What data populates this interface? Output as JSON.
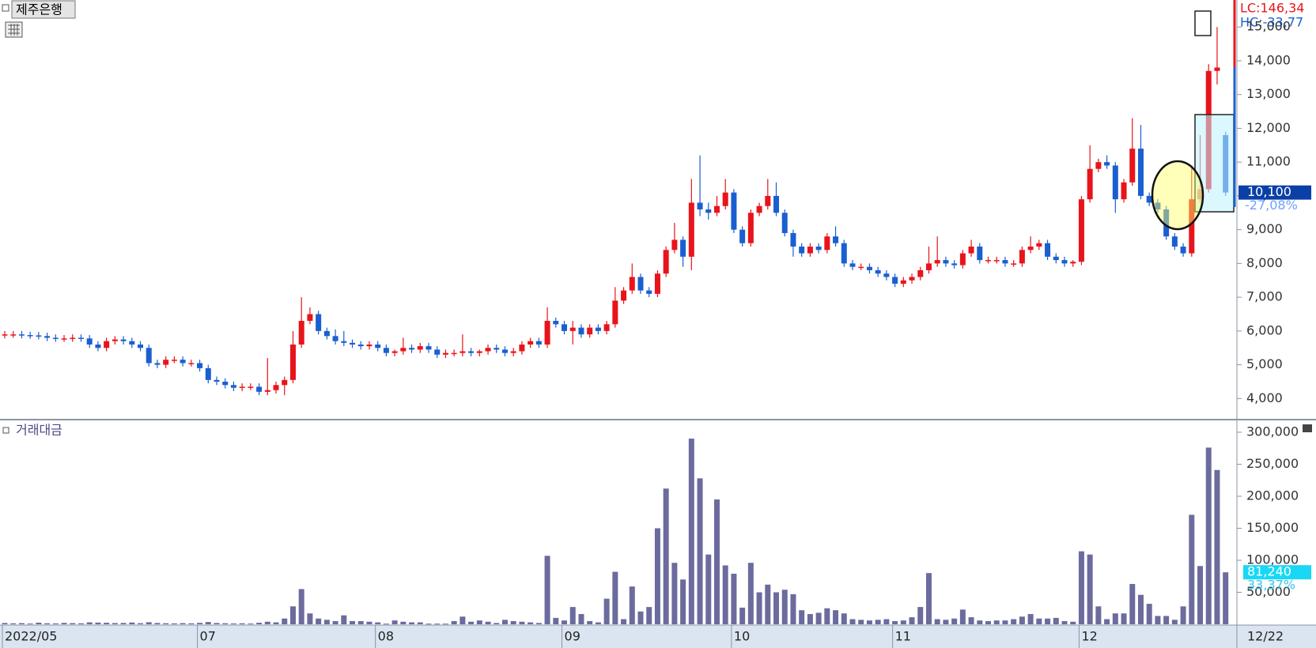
{
  "chart_data": [
    {
      "type": "candlestick",
      "title": "제주은행",
      "up_color": "#e8141b",
      "down_color": "#1a5fd0",
      "open": [
        5880,
        5900,
        5900,
        5880,
        5870,
        5850,
        5800,
        5780,
        5780,
        5800,
        5780,
        5600,
        5500,
        5700,
        5750,
        5700,
        5600,
        5500,
        5050,
        5000,
        5150,
        5150,
        5050,
        5050,
        4900,
        4550,
        4500,
        4400,
        4320,
        4350,
        4350,
        4200,
        4250,
        4400,
        4550,
        5600,
        6300,
        6500,
        6000,
        5850,
        5700,
        5650,
        5600,
        5550,
        5600,
        5500,
        5350,
        5400,
        5500,
        5450,
        5550,
        5450,
        5300,
        5350,
        5350,
        5400,
        5350,
        5400,
        5500,
        5450,
        5350,
        5400,
        5600,
        5700,
        5600,
        6300,
        6200,
        6000,
        6100,
        5900,
        6100,
        6000,
        6200,
        6900,
        7200,
        7600,
        7200,
        7100,
        7700,
        8400,
        8700,
        8200,
        9800,
        9600,
        9500,
        9700,
        10100,
        9000,
        8600,
        9500,
        9700,
        10000,
        9500,
        8900,
        8500,
        8300,
        8500,
        8400,
        8800,
        8600,
        8000,
        7900,
        7900,
        7800,
        7700,
        7600,
        7400,
        7500,
        7600,
        7800,
        8000,
        8100,
        8000,
        7950,
        8300,
        8500,
        8100,
        8100,
        8100,
        8000,
        8000,
        8400,
        8500,
        8600,
        8200,
        8100,
        8000,
        8050,
        9900,
        10800,
        11000,
        10900,
        9900,
        10400,
        11400,
        10000,
        9800,
        9600,
        8800,
        8500,
        8300,
        9900,
        10200,
        13700,
        11800
      ],
      "high": [
        6000,
        6000,
        6000,
        5980,
        5970,
        5950,
        5900,
        5880,
        5900,
        5900,
        5880,
        5700,
        5800,
        5850,
        5850,
        5800,
        5700,
        5600,
        5150,
        5250,
        5250,
        5250,
        5150,
        5150,
        5000,
        4650,
        4600,
        4500,
        4450,
        4450,
        4450,
        5200,
        4500,
        4650,
        6000,
        7000,
        6700,
        6600,
        6100,
        6050,
        6000,
        5750,
        5700,
        5700,
        5700,
        5600,
        5450,
        5800,
        5600,
        5650,
        5650,
        5550,
        5450,
        5450,
        5900,
        5500,
        5450,
        5600,
        5600,
        5550,
        5500,
        5700,
        5800,
        5800,
        6700,
        6400,
        6300,
        6300,
        6200,
        6200,
        6200,
        6300,
        7300,
        7300,
        8000,
        7700,
        7300,
        7800,
        8500,
        9200,
        8800,
        10500,
        11200,
        9800,
        10000,
        10500,
        10200,
        9100,
        9600,
        9800,
        10500,
        10400,
        9600,
        9000,
        8600,
        8600,
        8600,
        8900,
        9100,
        8700,
        8100,
        8000,
        8000,
        7900,
        7800,
        7700,
        7600,
        7700,
        7900,
        8500,
        8800,
        8200,
        8100,
        8400,
        8700,
        8600,
        8200,
        8200,
        8200,
        8100,
        8500,
        8800,
        8700,
        8700,
        8300,
        8200,
        8100,
        10000,
        11500,
        11100,
        11200,
        11000,
        10500,
        12300,
        12100,
        10100,
        9900,
        9700,
        8900,
        8600,
        10900,
        11800,
        13900,
        15000,
        11900
      ],
      "low": [
        5780,
        5800,
        5780,
        5770,
        5750,
        5700,
        5680,
        5680,
        5680,
        5680,
        5500,
        5400,
        5400,
        5600,
        5600,
        5500,
        5400,
        4950,
        4900,
        4900,
        5050,
        4950,
        4950,
        4800,
        4450,
        4400,
        4300,
        4220,
        4220,
        4250,
        4100,
        4100,
        4150,
        4100,
        4450,
        5500,
        6200,
        5900,
        5750,
        5600,
        5550,
        5500,
        5450,
        5450,
        5400,
        5250,
        5250,
        5300,
        5350,
        5350,
        5350,
        5200,
        5200,
        5250,
        5250,
        5250,
        5250,
        5300,
        5350,
        5250,
        5250,
        5300,
        5500,
        5500,
        5500,
        6100,
        5900,
        5600,
        5800,
        5800,
        5900,
        5900,
        6100,
        6800,
        7100,
        7100,
        7000,
        7000,
        7600,
        8300,
        7900,
        7800,
        9400,
        9300,
        9400,
        9600,
        8900,
        8500,
        8500,
        9400,
        9600,
        9400,
        8800,
        8200,
        8200,
        8200,
        8300,
        8300,
        8500,
        7900,
        7800,
        7800,
        7700,
        7600,
        7500,
        7300,
        7300,
        7400,
        7500,
        7700,
        7900,
        7900,
        7850,
        7850,
        8200,
        8000,
        8000,
        8000,
        7900,
        7900,
        7900,
        8300,
        8400,
        8100,
        8000,
        7900,
        7900,
        7950,
        9800,
        10700,
        10800,
        9500,
        9800,
        10300,
        9900,
        9700,
        9500,
        8700,
        8400,
        8200,
        8200,
        9800,
        10100,
        13300,
        10000
      ],
      "close": [
        5900,
        5900,
        5880,
        5870,
        5850,
        5800,
        5780,
        5780,
        5800,
        5780,
        5600,
        5500,
        5700,
        5750,
        5700,
        5600,
        5500,
        5050,
        5000,
        5150,
        5150,
        5050,
        5050,
        4900,
        4550,
        4500,
        4400,
        4320,
        4350,
        4350,
        4200,
        4250,
        4400,
        4550,
        5600,
        6300,
        6500,
        6000,
        5850,
        5700,
        5650,
        5600,
        5550,
        5600,
        5500,
        5350,
        5400,
        5500,
        5450,
        5550,
        5450,
        5300,
        5350,
        5350,
        5400,
        5350,
        5400,
        5500,
        5450,
        5350,
        5400,
        5600,
        5700,
        5600,
        6300,
        6200,
        6000,
        6100,
        5900,
        6100,
        6000,
        6200,
        6900,
        7200,
        7600,
        7200,
        7100,
        7700,
        8400,
        8700,
        8200,
        9800,
        9600,
        9500,
        9700,
        10100,
        9000,
        8600,
        9500,
        9700,
        10000,
        9500,
        8900,
        8500,
        8300,
        8500,
        8400,
        8800,
        8600,
        8000,
        7900,
        7900,
        7800,
        7700,
        7600,
        7400,
        7500,
        7600,
        7800,
        8000,
        8100,
        8000,
        7950,
        8300,
        8500,
        8100,
        8100,
        8100,
        8000,
        8000,
        8400,
        8500,
        8600,
        8200,
        8100,
        8000,
        8050,
        9900,
        10800,
        11000,
        10900,
        9900,
        10400,
        11400,
        10000,
        9800,
        9600,
        8800,
        8500,
        8300,
        9900,
        10200,
        13700,
        13800,
        10100
      ],
      "ylim": [
        3400,
        15800
      ],
      "yticks": [
        {
          "value": 4000,
          "label": "4,000"
        },
        {
          "value": 5000,
          "label": "5,000"
        },
        {
          "value": 6000,
          "label": "6,000"
        },
        {
          "value": 7000,
          "label": "7,000"
        },
        {
          "value": 8000,
          "label": "8,000"
        },
        {
          "value": 9000,
          "label": "9,000"
        },
        {
          "value": 10000,
          "label": "10,000"
        },
        {
          "value": 11000,
          "label": "11,000"
        },
        {
          "value": 12000,
          "label": "12,000"
        },
        {
          "value": 13000,
          "label": "13,000"
        },
        {
          "value": 14000,
          "label": "14,000"
        },
        {
          "value": 15000,
          "label": "15,000"
        }
      ],
      "xticks": [
        {
          "value": 0,
          "label": "2022/05"
        },
        {
          "value": 23,
          "label": "07"
        },
        {
          "value": 44,
          "label": "08"
        },
        {
          "value": 66,
          "label": "09"
        },
        {
          "value": 86,
          "label": "10"
        },
        {
          "value": 105,
          "label": "11"
        },
        {
          "value": 127,
          "label": "12"
        }
      ],
      "cursor_date": "12/22",
      "lc_label": "LC:146,34",
      "hc_label": "HC:-33,77",
      "last_price": {
        "value": 10100,
        "label": "10,100"
      },
      "change_label": "-27,08%"
    },
    {
      "type": "bar",
      "title": "거래대금",
      "color": "#6b6b9e",
      "values": [
        2000,
        1500,
        1800,
        1200,
        2500,
        1600,
        1400,
        2200,
        1800,
        1500,
        3000,
        2600,
        2400,
        1900,
        2100,
        2800,
        1700,
        3200,
        2000,
        1600,
        1400,
        1800,
        1500,
        2200,
        3500,
        2000,
        1600,
        1300,
        1500,
        1200,
        2400,
        4000,
        3000,
        9000,
        28000,
        55000,
        17000,
        9000,
        7000,
        5000,
        14000,
        5000,
        5000,
        4000,
        3000,
        1000,
        6000,
        4000,
        3000,
        3000,
        1000,
        1000,
        1000,
        5000,
        12000,
        4000,
        6000,
        4000,
        2000,
        7000,
        5000,
        4000,
        3000,
        2000,
        107000,
        10000,
        6000,
        27000,
        16000,
        5000,
        3000,
        40000,
        82000,
        8000,
        59000,
        20000,
        27000,
        150000,
        212000,
        96000,
        70000,
        290000,
        228000,
        109000,
        195000,
        92000,
        79000,
        26000,
        96000,
        50000,
        62000,
        50000,
        54000,
        47000,
        22000,
        16000,
        18000,
        25000,
        22000,
        17000,
        8000,
        7000,
        6000,
        7000,
        8000,
        5000,
        6000,
        11000,
        27000,
        80000,
        8000,
        7000,
        9000,
        23000,
        11000,
        6000,
        5000,
        6000,
        6000,
        8000,
        12000,
        16000,
        9000,
        9000,
        10000,
        5000,
        4000,
        114000,
        109000,
        28000,
        8000,
        17000,
        17000,
        63000,
        46000,
        32000,
        13000,
        13000,
        7000,
        28000,
        171000,
        91000,
        276000,
        241000,
        81240
      ],
      "ylim": [
        0,
        316000
      ],
      "yticks": [
        {
          "value": 50000,
          "label": "50,000"
        },
        {
          "value": 100000,
          "label": "100,000"
        },
        {
          "value": 150000,
          "label": "150,000"
        },
        {
          "value": 200000,
          "label": "200,000"
        },
        {
          "value": 250000,
          "label": "250,000"
        },
        {
          "value": 300000,
          "label": "300,000"
        }
      ],
      "last_value": {
        "value": 81240,
        "label": "81,240"
      },
      "change_label": "33,37%"
    }
  ]
}
